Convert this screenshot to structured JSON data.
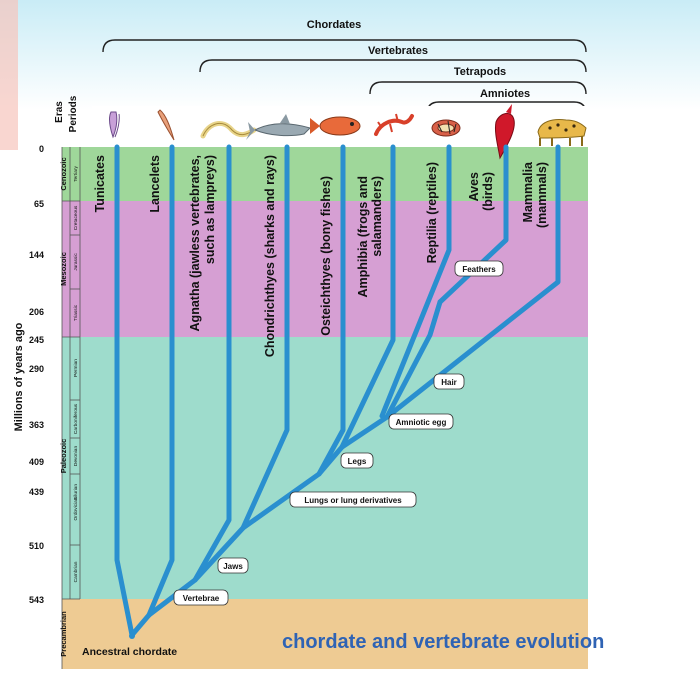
{
  "clades": {
    "chordates": "Chordates",
    "vertebrates": "Vertebrates",
    "tetrapods": "Tetrapods",
    "amniotes": "Amniotes"
  },
  "axis": {
    "eras_label": "Eras",
    "periods_label": "Periods",
    "y_label": "Millions of years ago",
    "ticks": [
      "0",
      "65",
      "144",
      "206",
      "245",
      "290",
      "363",
      "409",
      "439",
      "510",
      "543"
    ]
  },
  "eras": {
    "cenozoic": "Cenozoic",
    "mesozoic": "Mesozoic",
    "paleozoic": "Paleozoic",
    "precambrian": "Precambrian"
  },
  "periods": {
    "tertiary": "Tertiary",
    "cretaceous": "Cretaceous",
    "jurassic": "Jurassic",
    "triassic": "Triassic",
    "permian": "Permian",
    "carboniferous": "Carboniferous",
    "devonian": "Devonian",
    "silurian": "Silurian",
    "ordovician": "Ordovician",
    "cambrian": "Cambrian"
  },
  "taxa": {
    "tunicates": [
      "Tunicates"
    ],
    "lancelets": [
      "Lancelets"
    ],
    "agnatha": [
      "Agnatha (jawless vertebrates,",
      "such as lampreys)"
    ],
    "chondrichthyes": [
      "Chondrichthyes (sharks and rays)"
    ],
    "osteichthyes": [
      "Osteichthyes (bony fishes)"
    ],
    "amphibia": [
      "Amphibia (frogs and",
      "salamanders)"
    ],
    "reptilia": [
      "Reptilia (reptiles)"
    ],
    "aves": [
      "Aves",
      "(birds)"
    ],
    "mammalia": [
      "Mammalia",
      "(mammals)"
    ]
  },
  "traits": {
    "vertebrae": "Vertebrae",
    "jaws": "Jaws",
    "lungs": "Lungs or lung derivatives",
    "legs": "Legs",
    "amniotic_egg": "Amniotic egg",
    "hair": "Hair",
    "feathers": "Feathers"
  },
  "root_label": "Ancestral chordate",
  "caption": "chordate and vertebrate evolution",
  "colors": {
    "cenozoic": "#9fd79a",
    "mesozoic": "#d69fd3",
    "paleozoic": "#9edccc",
    "precambrian": "#eecb93",
    "branch": "#2a8fcf",
    "caption": "#2f63b4",
    "bracket": "#222222"
  },
  "icons": [
    "tunicate-icon",
    "lancelet-icon",
    "lamprey-icon",
    "shark-icon",
    "fish-icon",
    "salamander-icon",
    "snake-icon",
    "bird-icon",
    "leopard-icon"
  ]
}
